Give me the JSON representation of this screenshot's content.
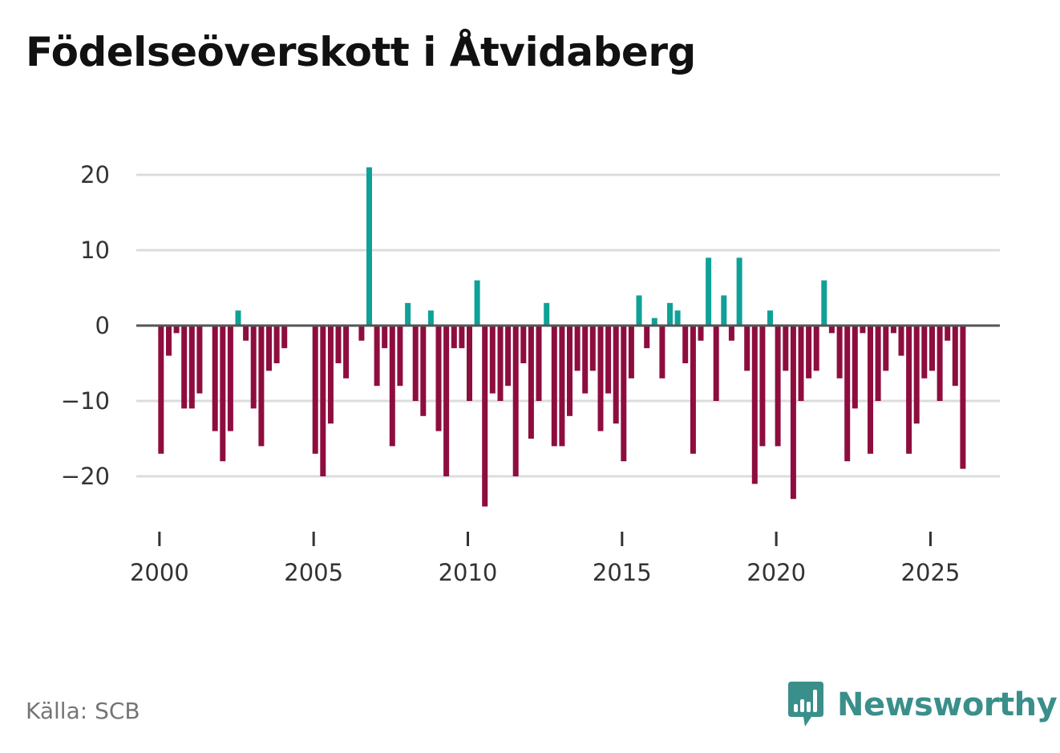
{
  "title": "Födelseöverskott i Åtvidaberg",
  "source": "Källa: SCB",
  "brand": {
    "name": "Newsworthy",
    "icon": "newsworthy-logo-icon"
  },
  "colors": {
    "positive": "#0fa197",
    "negative": "#8e0d3f",
    "grid": "#dcdcdc",
    "zero": "#555555",
    "brand": "#3a8f8a"
  },
  "chart_data": {
    "type": "bar",
    "title": "Födelseöverskott i Åtvidaberg",
    "xlabel": "",
    "ylabel": "",
    "ylim": [
      -27,
      22
    ],
    "xlim": [
      1999.25,
      2027.25
    ],
    "yticks": [
      20,
      10,
      0,
      -10,
      -20
    ],
    "ytick_labels": [
      "20",
      "10",
      "0",
      "−10",
      "−20"
    ],
    "xticks": [
      2000,
      2005,
      2010,
      2015,
      2020,
      2025
    ],
    "xtick_labels": [
      "2000",
      "2005",
      "2010",
      "2015",
      "2020",
      "2025"
    ],
    "grid": true,
    "frequency": "quarterly",
    "start": 2000.0,
    "step": 0.25,
    "values": [
      -17,
      -4,
      -1,
      -11,
      -11,
      -9,
      0,
      -14,
      -18,
      -14,
      2,
      -2,
      -11,
      -16,
      -6,
      -5,
      -3,
      0,
      0,
      0,
      -17,
      -20,
      -13,
      -5,
      -7,
      0,
      -2,
      21,
      -8,
      -3,
      -16,
      -8,
      3,
      -10,
      -12,
      2,
      -14,
      -20,
      -3,
      -3,
      -10,
      6,
      -24,
      -9,
      -10,
      -8,
      -20,
      -5,
      -15,
      -10,
      3,
      -16,
      -16,
      -12,
      -6,
      -9,
      -6,
      -14,
      -9,
      -13,
      -18,
      -7,
      4,
      -3,
      1,
      -7,
      3,
      2,
      -5,
      -17,
      -2,
      9,
      -10,
      4,
      -2,
      9,
      -6,
      -21,
      -16,
      2,
      -16,
      -6,
      -23,
      -10,
      -7,
      -6,
      6,
      -1,
      -7,
      -18,
      -11,
      -1,
      -17,
      -10,
      -6,
      -1,
      -4,
      -17,
      -13,
      -7,
      -6,
      -10,
      -2,
      -8,
      -19
    ]
  }
}
